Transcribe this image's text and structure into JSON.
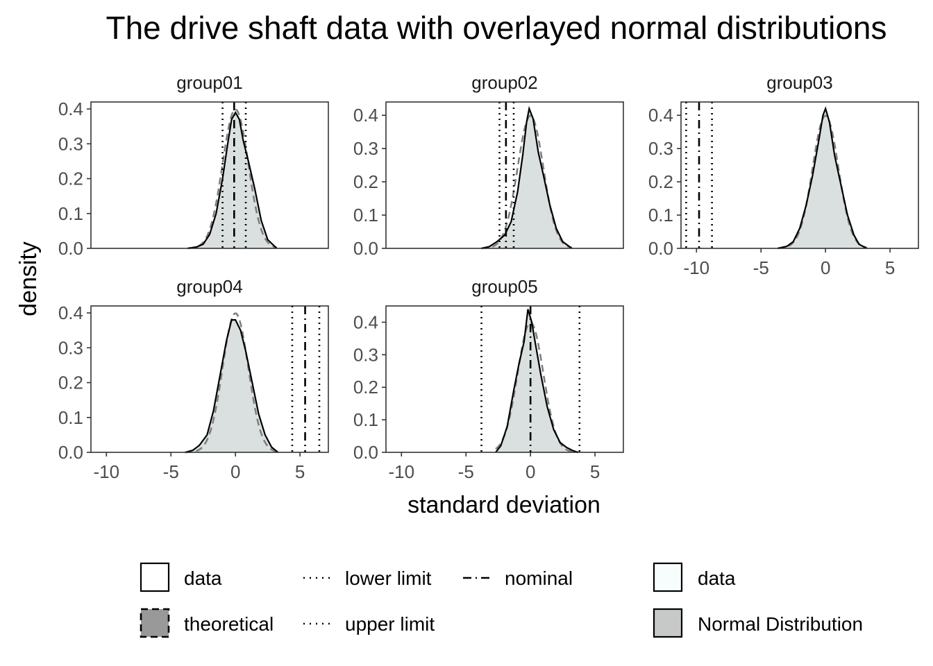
{
  "chart_data": {
    "type": "area",
    "title": "The drive shaft data with overlayed normal distributions",
    "xlabel": "standard deviation",
    "ylabel": "density",
    "x_ticks": [
      -10,
      -5,
      0,
      5
    ],
    "x_tick_labels": [
      "-10",
      "-5",
      "0",
      "5"
    ],
    "xlim": [
      -11.2,
      7.2
    ],
    "panels": [
      {
        "name": "group01",
        "ylim": [
          0,
          0.42
        ],
        "y_ticks": [
          0.0,
          0.1,
          0.2,
          0.3,
          0.4
        ],
        "y_tick_labels": [
          "0.0",
          "0.1",
          "0.2",
          "0.3",
          "0.4"
        ],
        "lower_limit": -1.0,
        "nominal": -0.1,
        "upper_limit": 0.8,
        "data_range": [
          -3.7,
          3.2
        ],
        "density_points": [
          [
            -3.7,
            0.0
          ],
          [
            -3.0,
            0.004
          ],
          [
            -2.5,
            0.012
          ],
          [
            -2.0,
            0.04
          ],
          [
            -1.5,
            0.1
          ],
          [
            -1.0,
            0.2
          ],
          [
            -0.6,
            0.3
          ],
          [
            -0.3,
            0.37
          ],
          [
            0.0,
            0.39
          ],
          [
            0.3,
            0.37
          ],
          [
            0.6,
            0.31
          ],
          [
            1.0,
            0.25
          ],
          [
            1.5,
            0.17
          ],
          [
            2.0,
            0.08
          ],
          [
            2.5,
            0.025
          ],
          [
            3.2,
            0.0
          ]
        ]
      },
      {
        "name": "group02",
        "ylim": [
          0,
          0.44
        ],
        "y_ticks": [
          0.0,
          0.1,
          0.2,
          0.3,
          0.4
        ],
        "y_tick_labels": [
          "0.0",
          "0.1",
          "0.2",
          "0.3",
          "0.4"
        ],
        "lower_limit": -2.4,
        "nominal": -1.9,
        "upper_limit": -1.3,
        "data_range": [
          -3.8,
          3.2
        ],
        "density_points": [
          [
            -3.8,
            0.0
          ],
          [
            -3.2,
            0.005
          ],
          [
            -2.6,
            0.02
          ],
          [
            -2.0,
            0.04
          ],
          [
            -1.5,
            0.08
          ],
          [
            -1.0,
            0.17
          ],
          [
            -0.6,
            0.28
          ],
          [
            -0.3,
            0.38
          ],
          [
            -0.1,
            0.42
          ],
          [
            0.2,
            0.39
          ],
          [
            0.6,
            0.29
          ],
          [
            1.0,
            0.22
          ],
          [
            1.5,
            0.13
          ],
          [
            2.0,
            0.06
          ],
          [
            2.5,
            0.02
          ],
          [
            3.2,
            0.0
          ]
        ]
      },
      {
        "name": "group03",
        "ylim": [
          0,
          0.44
        ],
        "y_ticks": [
          0.0,
          0.1,
          0.2,
          0.3,
          0.4
        ],
        "y_tick_labels": [
          "0.0",
          "0.1",
          "0.2",
          "0.3",
          "0.4"
        ],
        "lower_limit": -10.8,
        "nominal": -9.8,
        "upper_limit": -8.8,
        "data_range": [
          -3.7,
          3.2
        ],
        "density_points": [
          [
            -3.7,
            0.0
          ],
          [
            -3.0,
            0.006
          ],
          [
            -2.5,
            0.02
          ],
          [
            -2.0,
            0.06
          ],
          [
            -1.5,
            0.13
          ],
          [
            -1.0,
            0.22
          ],
          [
            -0.5,
            0.33
          ],
          [
            -0.2,
            0.4
          ],
          [
            0.0,
            0.42
          ],
          [
            0.3,
            0.38
          ],
          [
            0.7,
            0.28
          ],
          [
            1.2,
            0.19
          ],
          [
            1.7,
            0.1
          ],
          [
            2.2,
            0.04
          ],
          [
            2.6,
            0.012
          ],
          [
            3.2,
            0.0
          ]
        ]
      },
      {
        "name": "group04",
        "ylim": [
          0,
          0.42
        ],
        "y_ticks": [
          0.0,
          0.1,
          0.2,
          0.3,
          0.4
        ],
        "y_tick_labels": [
          "0.0",
          "0.1",
          "0.2",
          "0.3",
          "0.4"
        ],
        "lower_limit": 4.4,
        "nominal": 5.4,
        "upper_limit": 6.5,
        "data_range": [
          -3.9,
          3.3
        ],
        "density_points": [
          [
            -3.9,
            0.0
          ],
          [
            -3.3,
            0.006
          ],
          [
            -2.8,
            0.02
          ],
          [
            -2.2,
            0.05
          ],
          [
            -1.7,
            0.12
          ],
          [
            -1.2,
            0.22
          ],
          [
            -0.7,
            0.32
          ],
          [
            -0.3,
            0.38
          ],
          [
            0.0,
            0.38
          ],
          [
            0.4,
            0.35
          ],
          [
            0.8,
            0.29
          ],
          [
            1.3,
            0.2
          ],
          [
            1.8,
            0.11
          ],
          [
            2.3,
            0.05
          ],
          [
            2.8,
            0.015
          ],
          [
            3.3,
            0.0
          ]
        ]
      },
      {
        "name": "group05",
        "ylim": [
          0,
          0.45
        ],
        "y_ticks": [
          0.0,
          0.1,
          0.2,
          0.3,
          0.4
        ],
        "y_tick_labels": [
          "0.0",
          "0.1",
          "0.2",
          "0.3",
          "0.4"
        ],
        "lower_limit": -3.8,
        "nominal": 0.0,
        "upper_limit": 3.8,
        "data_range": [
          -2.7,
          3.7
        ],
        "density_points": [
          [
            -2.7,
            0.0
          ],
          [
            -2.3,
            0.02
          ],
          [
            -1.8,
            0.08
          ],
          [
            -1.3,
            0.19
          ],
          [
            -0.9,
            0.27
          ],
          [
            -0.5,
            0.34
          ],
          [
            -0.2,
            0.44
          ],
          [
            0.1,
            0.4
          ],
          [
            0.4,
            0.33
          ],
          [
            0.8,
            0.24
          ],
          [
            1.3,
            0.14
          ],
          [
            1.8,
            0.07
          ],
          [
            2.3,
            0.03
          ],
          [
            2.8,
            0.015
          ],
          [
            3.3,
            0.005
          ],
          [
            3.7,
            0.0
          ]
        ]
      }
    ],
    "legend": {
      "placement": "bottom",
      "group_a": [
        {
          "label": "data",
          "style": "outline-box"
        },
        {
          "label": "theoretical",
          "style": "dashed-filled-box"
        }
      ],
      "group_b": [
        {
          "label": "lower limit",
          "style": "dotted"
        },
        {
          "label": "upper limit",
          "style": "dotted"
        },
        {
          "label": "nominal",
          "style": "dashed"
        }
      ],
      "group_c": [
        {
          "label": "data",
          "fill": "#f7fcfc"
        },
        {
          "label": "Normal Distribution",
          "fill": "#c7c9c9"
        }
      ]
    },
    "colors": {
      "data_fill": "#dae0e0",
      "data_line": "#000000",
      "theoretical_line": "#7f7f7f",
      "limit_line": "#000000",
      "panel_border": "#333333",
      "tick_text": "#4d4d4d"
    },
    "grid": false
  }
}
